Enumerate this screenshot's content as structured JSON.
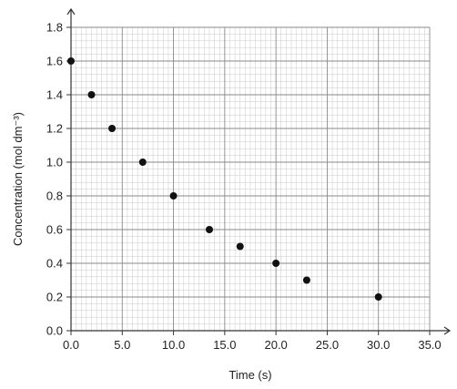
{
  "chart_data": {
    "type": "scatter",
    "title": "",
    "xlabel": "Time (s)",
    "ylabel": "Concentration (mol dm⁻³)",
    "xlim": [
      0,
      35
    ],
    "ylim": [
      0,
      1.8
    ],
    "xticks": [
      "0.0",
      "5.0",
      "10.0",
      "15.0",
      "20.0",
      "25.0",
      "30.0",
      "35.0"
    ],
    "yticks": [
      "0.0",
      "0.2",
      "0.4",
      "0.6",
      "0.8",
      "1.0",
      "1.2",
      "1.4",
      "1.6",
      "1.8"
    ],
    "grid": true,
    "points": [
      {
        "x": 0.0,
        "y": 1.6
      },
      {
        "x": 2.0,
        "y": 1.4
      },
      {
        "x": 4.0,
        "y": 1.2
      },
      {
        "x": 7.0,
        "y": 1.0
      },
      {
        "x": 10.0,
        "y": 0.8
      },
      {
        "x": 13.5,
        "y": 0.6
      },
      {
        "x": 16.5,
        "y": 0.5
      },
      {
        "x": 20.0,
        "y": 0.4
      },
      {
        "x": 23.0,
        "y": 0.3
      },
      {
        "x": 30.0,
        "y": 0.2
      }
    ],
    "colors": {
      "minor_grid": "#c9c9c9",
      "major_grid": "#8a8a8a",
      "axis": "#333333",
      "point": "#111111"
    }
  }
}
